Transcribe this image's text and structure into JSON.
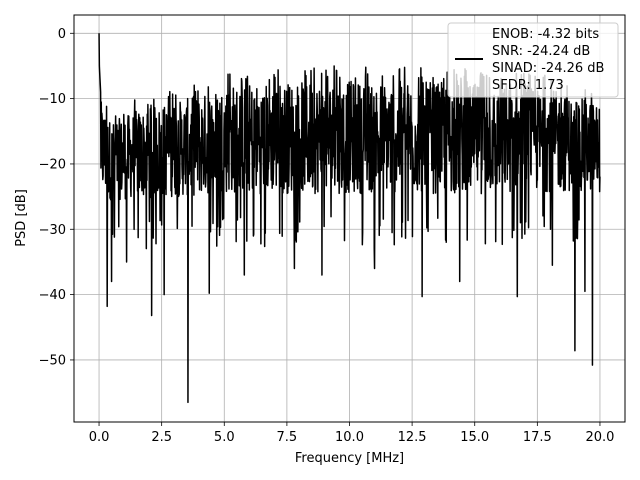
{
  "chart_data": {
    "type": "line",
    "title": "",
    "xlabel": "Frequency [MHz]",
    "ylabel": "PSD [dB]",
    "xlim": [
      -1.0,
      21.0
    ],
    "ylim": [
      -59.5,
      2.8
    ],
    "xticks": [
      0.0,
      2.5,
      5.0,
      7.5,
      10.0,
      12.5,
      15.0,
      17.5,
      20.0
    ],
    "xtick_labels": [
      "0.0",
      "2.5",
      "5.0",
      "7.5",
      "10.0",
      "12.5",
      "15.0",
      "17.5",
      "20.0"
    ],
    "yticks": [
      0,
      -10,
      -20,
      -30,
      -40,
      -50
    ],
    "ytick_labels": [
      "0",
      "−10",
      "−20",
      "−30",
      "−40",
      "−50"
    ],
    "grid": true,
    "legend_position": "top-right",
    "legend_lines": [
      "ENOB: -4.32 bits",
      "SNR: -24.24 dB",
      "SINAD: -24.26 dB",
      "SFDR: 1.73"
    ],
    "series": [
      {
        "color": "#000000",
        "style": "noisy-spectrum",
        "x_range": [
          0.0,
          20.0
        ],
        "peak": {
          "x": 0.0,
          "y": 0.0
        },
        "upper_envelope": [
          [
            0.1,
            -8.5
          ],
          [
            0.5,
            -12
          ],
          [
            1.5,
            -10
          ],
          [
            3.0,
            -8.5
          ],
          [
            4.0,
            -7.5
          ],
          [
            5.0,
            -5.5
          ],
          [
            8.0,
            -5
          ],
          [
            10.0,
            -5
          ],
          [
            12.0,
            -5
          ],
          [
            15.0,
            -5.5
          ],
          [
            18.0,
            -6.5
          ],
          [
            20.0,
            -9
          ]
        ],
        "lower_envelope": [
          [
            0.1,
            -28
          ],
          [
            5.0,
            -28
          ],
          [
            10.0,
            -28
          ],
          [
            15.0,
            -28
          ],
          [
            20.0,
            -27
          ]
        ],
        "notable_minima": [
          {
            "x": 0.32,
            "y": -41.8
          },
          {
            "x": 0.5,
            "y": -38
          },
          {
            "x": 1.1,
            "y": -35
          },
          {
            "x": 2.1,
            "y": -43.2
          },
          {
            "x": 2.6,
            "y": -40
          },
          {
            "x": 3.55,
            "y": -56.5
          },
          {
            "x": 4.4,
            "y": -39.8
          },
          {
            "x": 5.8,
            "y": -37
          },
          {
            "x": 7.8,
            "y": -36
          },
          {
            "x": 8.9,
            "y": -37
          },
          {
            "x": 11.0,
            "y": -36
          },
          {
            "x": 12.9,
            "y": -40.3
          },
          {
            "x": 14.4,
            "y": -38
          },
          {
            "x": 16.7,
            "y": -40.3
          },
          {
            "x": 18.1,
            "y": -35.5
          },
          {
            "x": 19.0,
            "y": -48.6
          },
          {
            "x": 19.4,
            "y": -39.5
          },
          {
            "x": 19.7,
            "y": -50.8
          }
        ]
      }
    ]
  }
}
